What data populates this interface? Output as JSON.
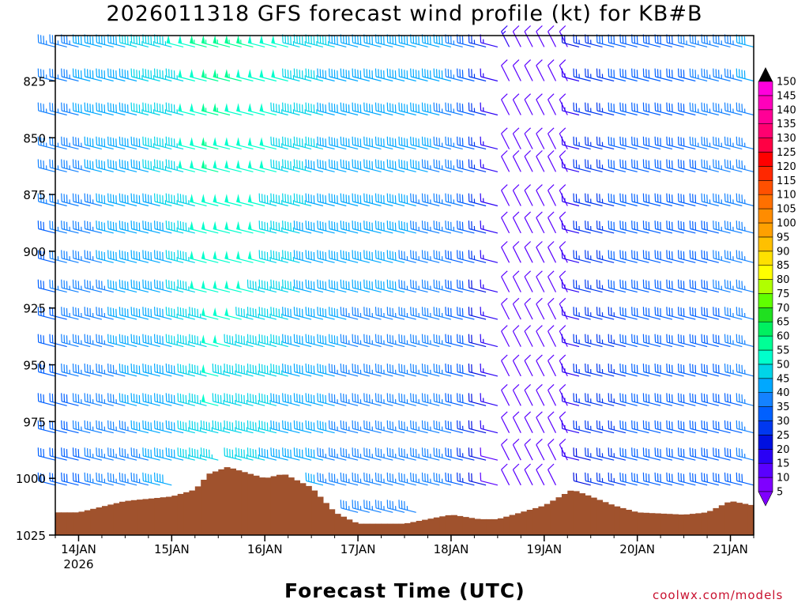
{
  "title": "2026011318 GFS forecast wind profile (kt) for KB#B",
  "xlabel": "Forecast Time (UTC)",
  "credit": "coolwx.com/models",
  "chart_data": {
    "type": "wind_barb_profile",
    "title": "2026011318 GFS forecast wind profile (kt) for KB#B",
    "xlabel": "Forecast Time (UTC)",
    "ylabel": "",
    "y_axis": {
      "ticks": [
        825,
        850,
        875,
        900,
        925,
        950,
        975,
        1000,
        1025
      ],
      "range": [
        1025,
        805
      ],
      "inverted": true
    },
    "x_axis": {
      "ticks": [
        "14JAN",
        "15JAN",
        "16JAN",
        "17JAN",
        "18JAN",
        "19JAN",
        "20JAN",
        "21JAN"
      ],
      "sublabel": "2026",
      "range_days": [
        13.75,
        21.25
      ]
    },
    "pressure_levels": [
      810,
      825,
      840,
      855,
      865,
      880,
      892,
      905,
      918,
      930,
      942,
      955,
      968,
      980,
      992,
      1003,
      1015
    ],
    "time_step_hours": 3,
    "colorbar": {
      "levels": [
        5,
        10,
        15,
        20,
        25,
        30,
        35,
        40,
        45,
        50,
        55,
        60,
        65,
        70,
        75,
        80,
        85,
        90,
        95,
        100,
        105,
        110,
        115,
        120,
        125,
        130,
        135,
        140,
        145,
        150
      ],
      "colors": [
        "#7f00ff",
        "#5a00ff",
        "#2a00f5",
        "#0010e0",
        "#0038f0",
        "#0060ff",
        "#1482ff",
        "#00a8ff",
        "#00d4e8",
        "#00ffcc",
        "#00ff96",
        "#00f060",
        "#20e020",
        "#60ff00",
        "#b0ff00",
        "#ffff00",
        "#ffe000",
        "#ffc000",
        "#ffa000",
        "#ff8c00",
        "#ff7000",
        "#ff5000",
        "#ff2800",
        "#ff0000",
        "#ff0044",
        "#ff0070",
        "#ff0096",
        "#ff00bb",
        "#ff00dd",
        "#000000"
      ]
    },
    "wind_speed_kt_by_day": {
      "days": [
        13.75,
        14.5,
        15.0,
        15.5,
        16.0,
        16.5,
        17.0,
        17.5,
        18.0,
        18.3,
        18.5,
        18.75,
        19.0,
        19.25,
        19.5,
        20.0,
        20.5,
        21.0,
        21.25
      ],
      "speed_upper_levels": [
        35,
        42,
        45,
        55,
        52,
        45,
        40,
        40,
        38,
        30,
        15,
        10,
        8,
        10,
        25,
        30,
        32,
        35,
        38
      ],
      "speed_lower_levels": [
        28,
        35,
        38,
        45,
        42,
        38,
        35,
        35,
        33,
        25,
        12,
        8,
        8,
        12,
        22,
        28,
        28,
        30,
        32
      ]
    },
    "surface_pressure_by_day": {
      "days": [
        13.75,
        14.0,
        14.5,
        15.0,
        15.25,
        15.4,
        15.6,
        16.0,
        16.2,
        16.5,
        16.75,
        17.0,
        17.5,
        18.0,
        18.3,
        18.5,
        18.75,
        19.0,
        19.3,
        19.5,
        19.75,
        20.0,
        20.5,
        20.75,
        21.0,
        21.25
      ],
      "pressure_hpa": [
        1015,
        1015,
        1010,
        1008,
        1005,
        998,
        995,
        1000,
        998,
        1004,
        1015,
        1020,
        1020,
        1016,
        1018,
        1018,
        1015,
        1012,
        1005,
        1008,
        1012,
        1015,
        1016,
        1015,
        1010,
        1012
      ]
    }
  }
}
